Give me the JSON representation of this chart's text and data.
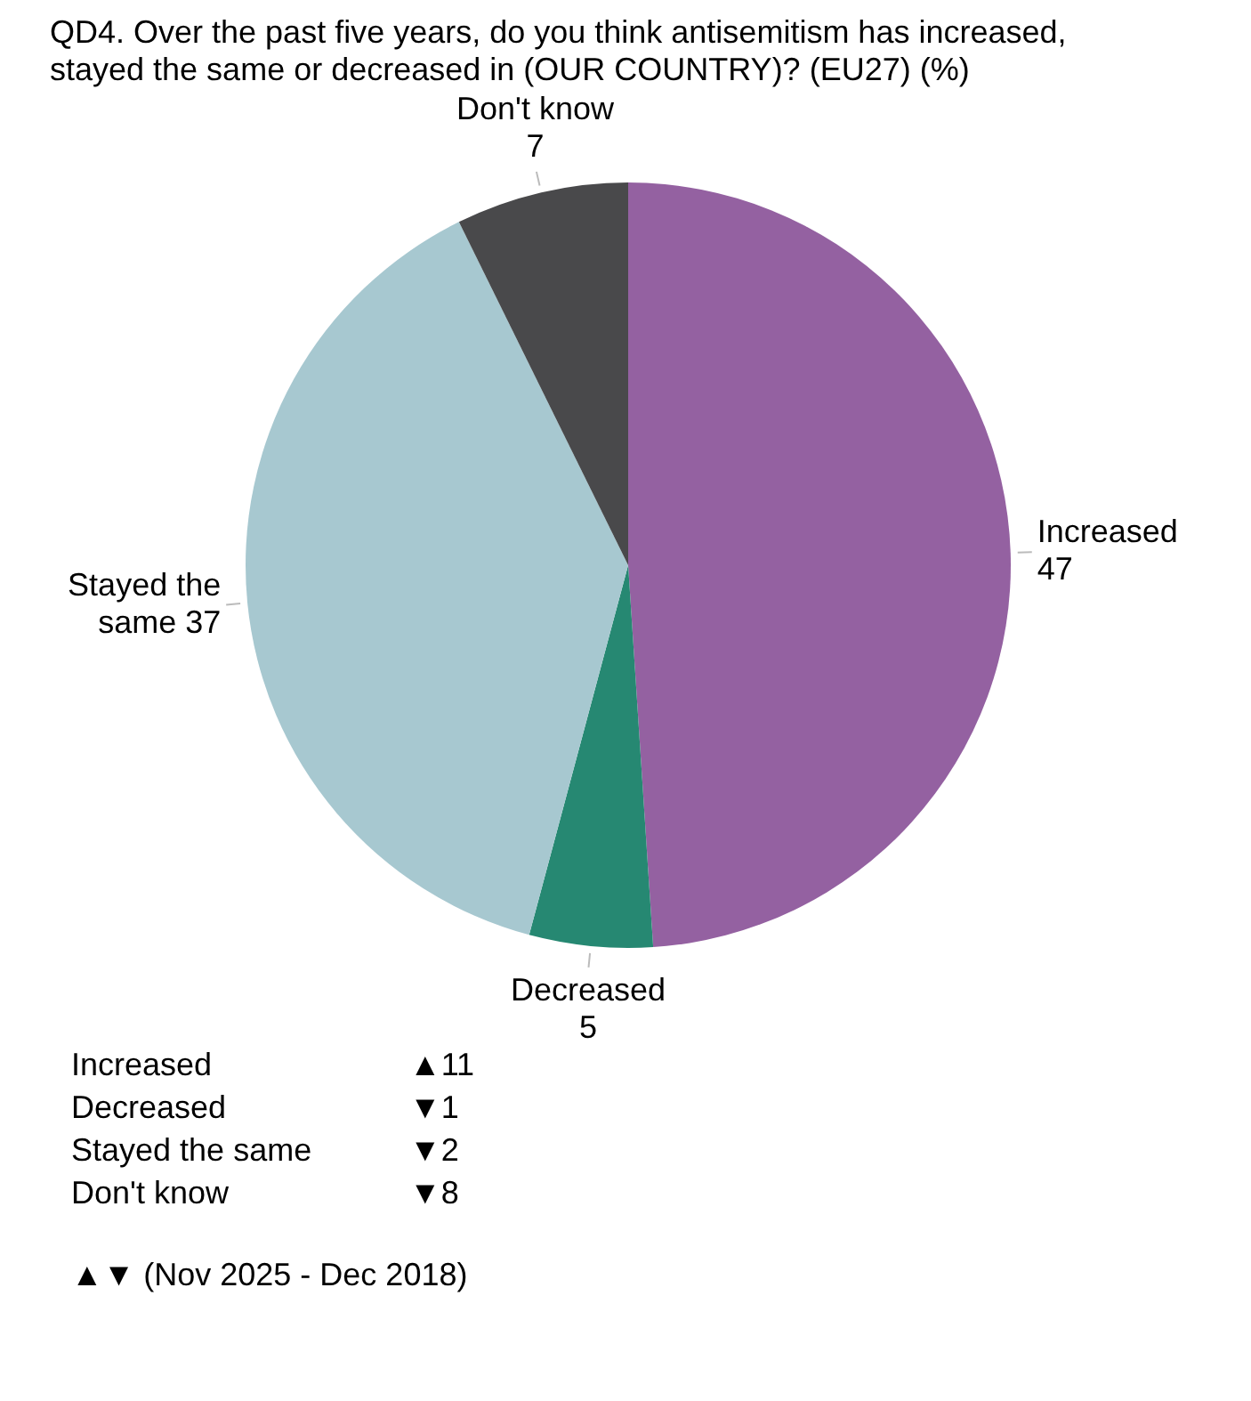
{
  "chart_data": {
    "type": "pie",
    "title": "QD4. Over the past five years, do you think antisemitism has increased, stayed the same or decreased in (OUR COUNTRY)? (EU27) (%)",
    "categories": [
      "Increased",
      "Decreased",
      "Stayed the same",
      "Don't know"
    ],
    "values": [
      47,
      5,
      37,
      7
    ],
    "colors": [
      "#9461a1",
      "#268872",
      "#a7c8d0",
      "#49494b"
    ],
    "data_labels": true,
    "legend": false,
    "annotations": [
      "Increased\t▲11",
      "Decreased\t▼1",
      "Stayed the same\t▼2",
      "Don't know\t▼8",
      "▲▼ (Nov 2025 - Dec 2018)"
    ]
  }
}
